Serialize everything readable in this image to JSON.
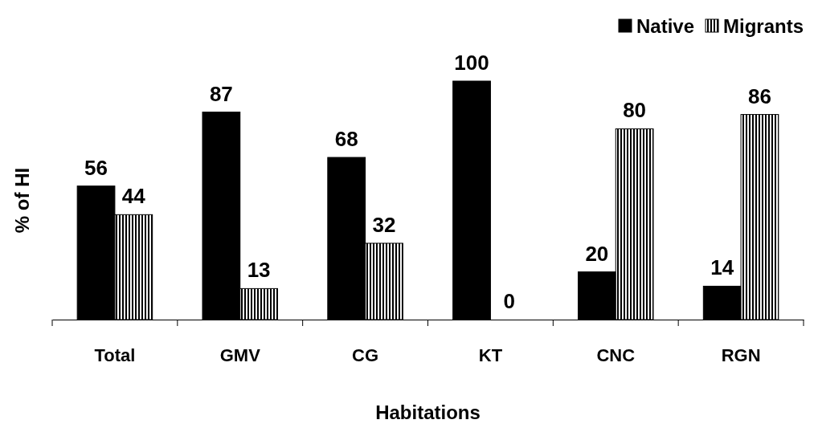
{
  "chart_data": {
    "type": "bar",
    "xlabel": "Habitations",
    "ylabel": "% of HI",
    "categories": [
      "Total",
      "GMV",
      "CG",
      "KT",
      "CNC",
      "RGN"
    ],
    "series": [
      {
        "name": "Native",
        "color": "#000000",
        "values": [
          56,
          87,
          68,
          100,
          20,
          14
        ]
      },
      {
        "name": "Migrants",
        "color": "#000000",
        "values": [
          44,
          13,
          32,
          0,
          80,
          86
        ]
      }
    ],
    "data_labels": true,
    "legend": "top right"
  }
}
